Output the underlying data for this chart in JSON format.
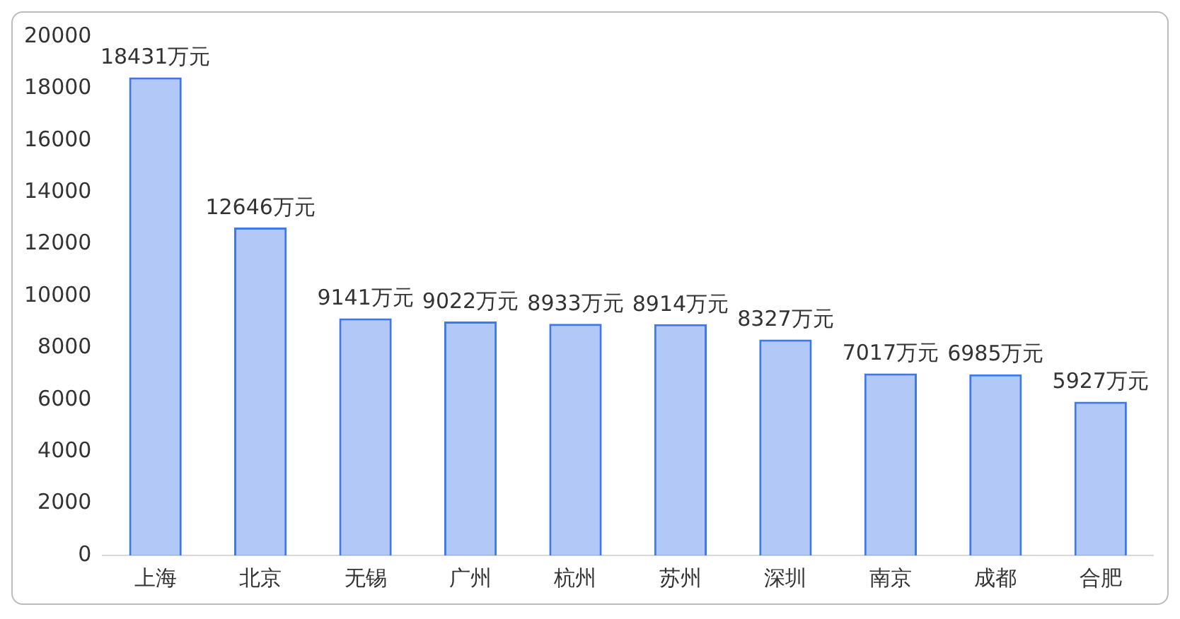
{
  "chart_data": {
    "type": "bar",
    "categories": [
      "上海",
      "北京",
      "无锡",
      "广州",
      "杭州",
      "苏州",
      "深圳",
      "南京",
      "成都",
      "合肥"
    ],
    "values": [
      18431,
      12646,
      9141,
      9022,
      8933,
      8914,
      8327,
      7017,
      6985,
      5927
    ],
    "value_labels": [
      "18431万元",
      "12646万元",
      "9141万元",
      "9022万元",
      "8933万元",
      "8914万元",
      "8327万元",
      "7017万元",
      "6985万元",
      "5927万元"
    ],
    "color": "#3f78ec",
    "ylim": [
      0,
      20000
    ],
    "yticks": [
      0,
      2000,
      4000,
      6000,
      8000,
      10000,
      12000,
      14000,
      16000,
      18000,
      20000
    ],
    "grid": false,
    "legend": false
  }
}
